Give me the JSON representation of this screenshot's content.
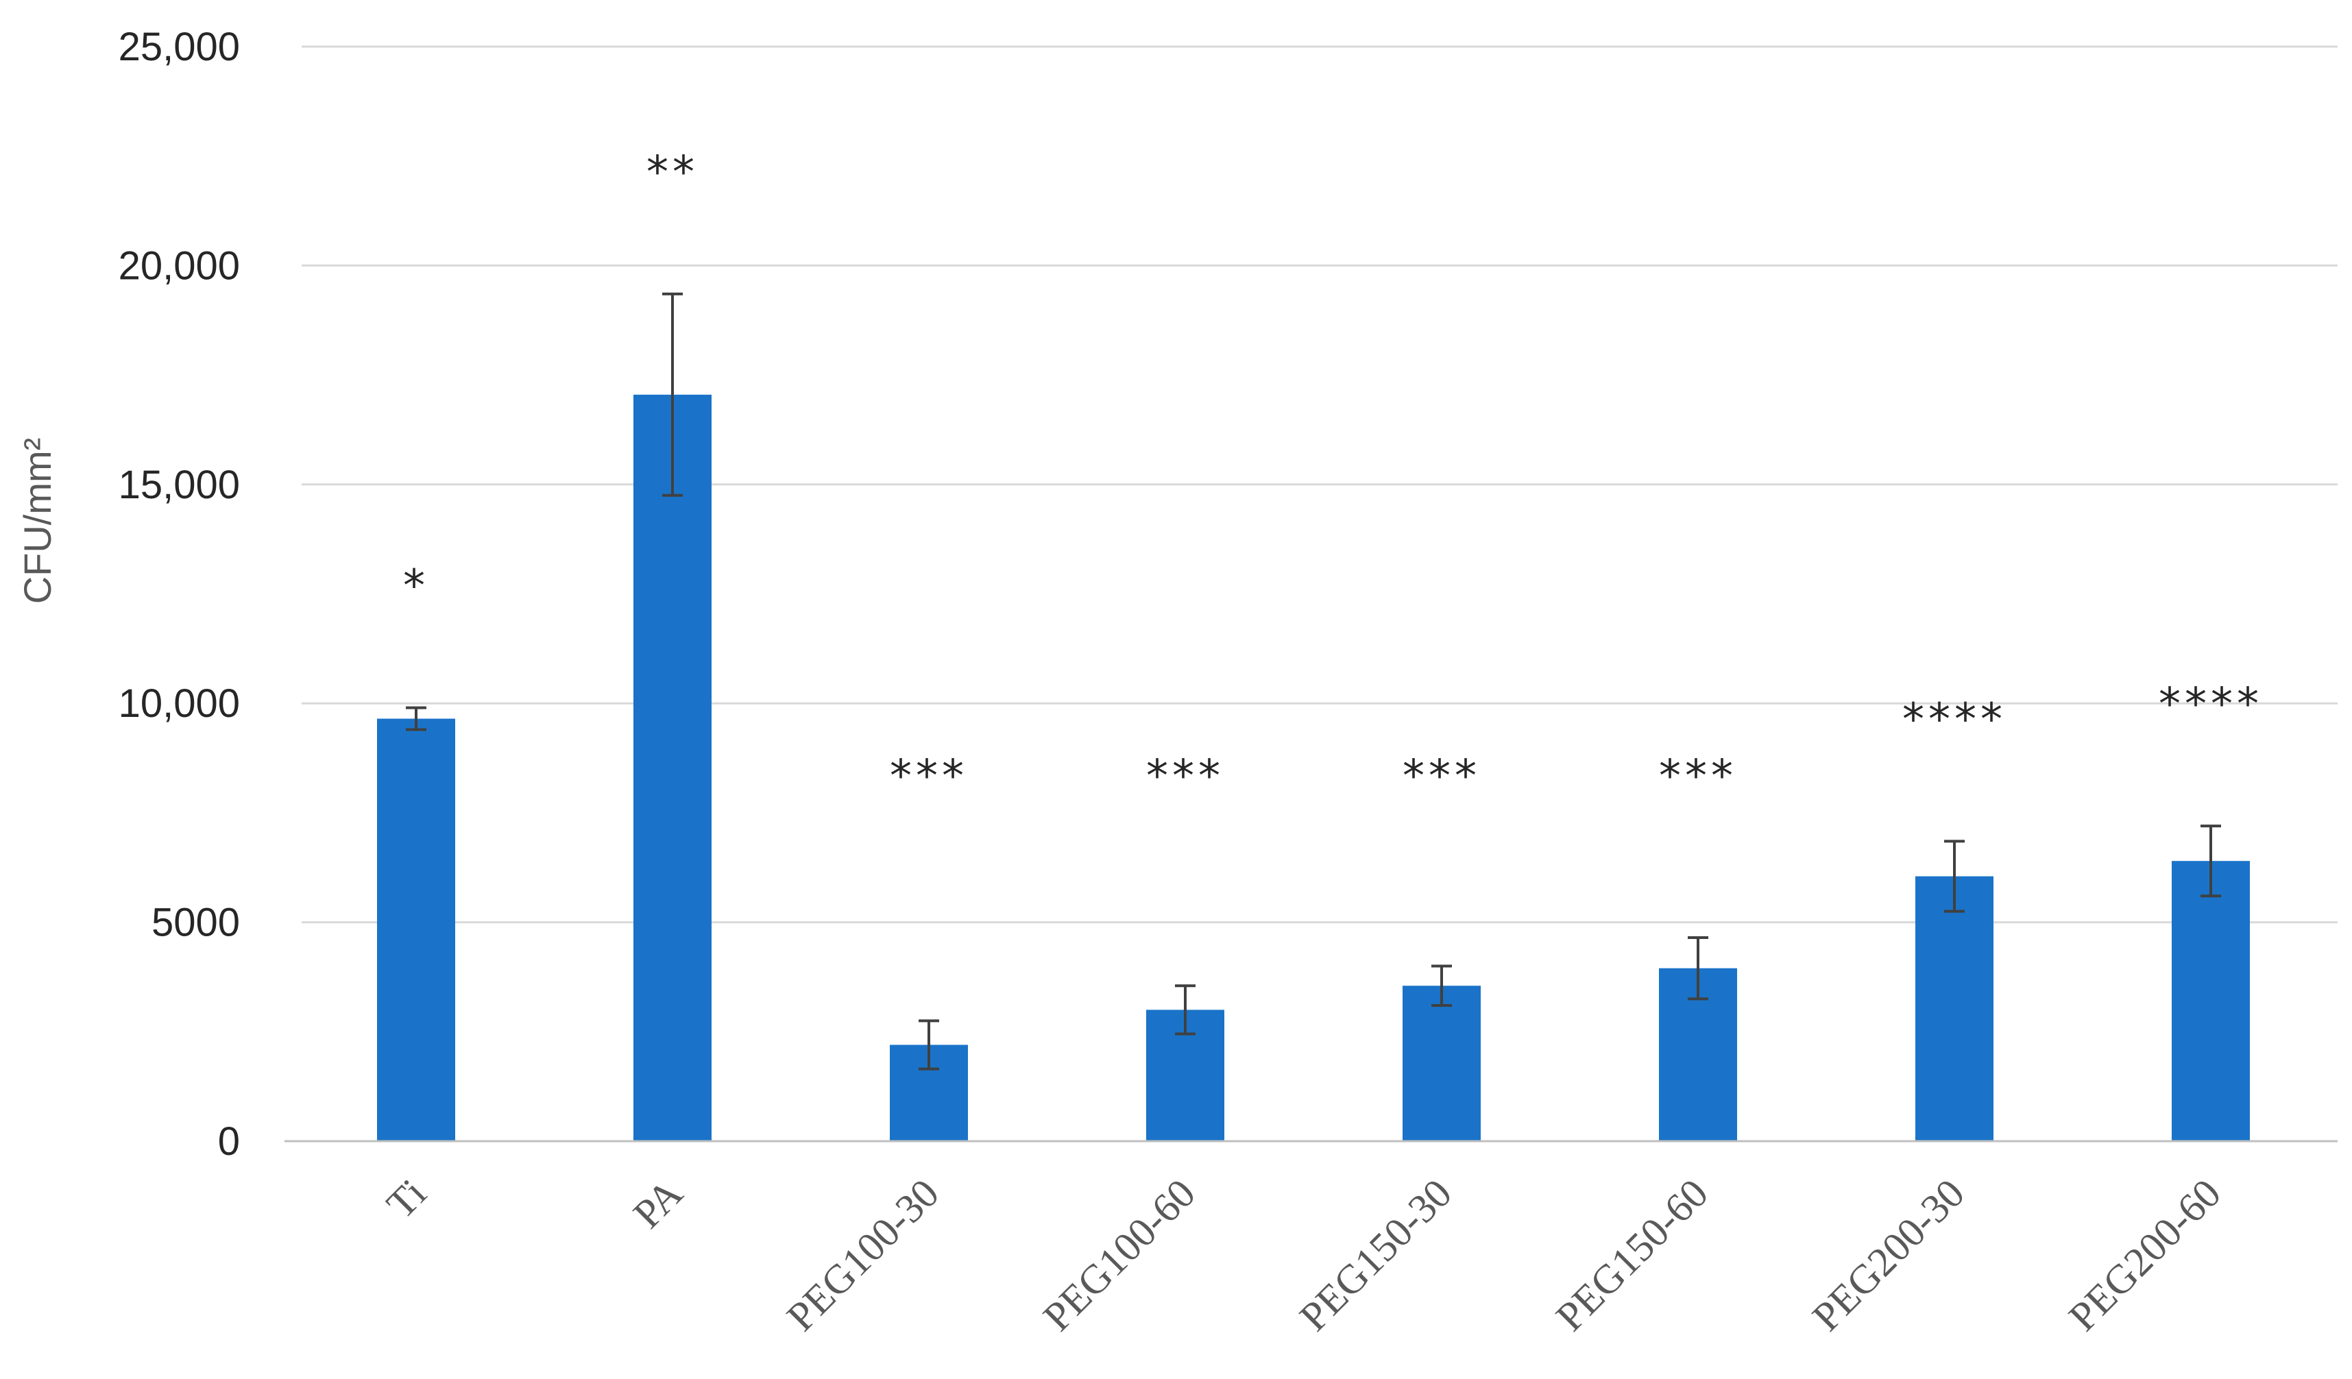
{
  "chart_data": {
    "type": "bar",
    "title": "",
    "xlabel": "",
    "ylabel": "CFU/mm²",
    "ylim": [
      0,
      25000
    ],
    "yticks": [
      0,
      5000,
      10000,
      15000,
      20000,
      25000
    ],
    "ytick_labels": [
      "0",
      "5000",
      "10,000",
      "15,000",
      "20,000",
      "25,000"
    ],
    "grid": true,
    "legend": "none",
    "color": "#1a73c8",
    "categories": [
      "Ti",
      "PA",
      "PEG100-30",
      "PEG100-60",
      "PEG150-30",
      "PEG150-60",
      "PEG200-30",
      "PEG200-60"
    ],
    "values": [
      9650,
      17050,
      2200,
      3000,
      3550,
      3950,
      6050,
      6400
    ],
    "errors": [
      250,
      2300,
      550,
      550,
      450,
      700,
      800,
      800
    ],
    "annotations": [
      "*",
      "**",
      "***",
      "***",
      "***",
      "***",
      "****",
      "****"
    ]
  }
}
